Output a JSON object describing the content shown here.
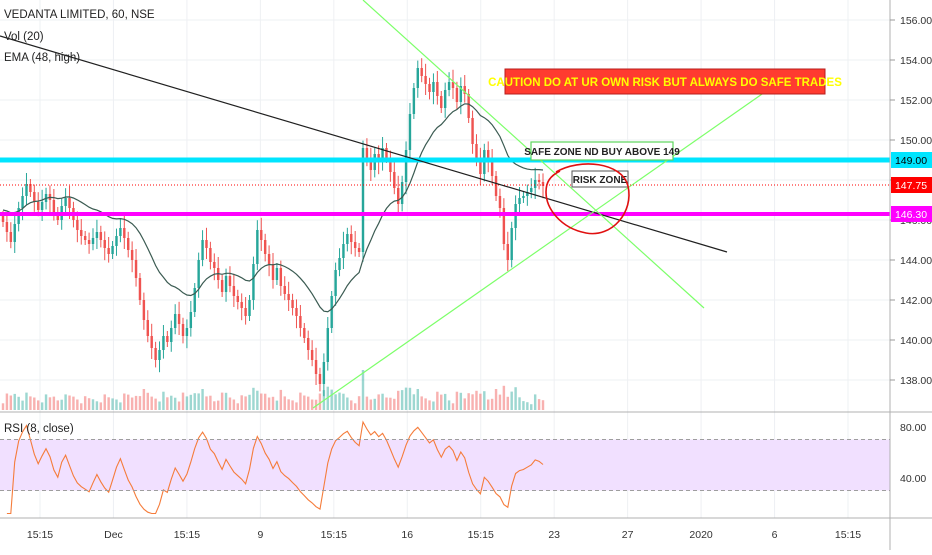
{
  "legend": {
    "symbol_line": "VEDANTA LIMITED, 60, NSE",
    "volume_line": "Vol (20)",
    "ema_line": "EMA (48, high)",
    "rsi_line": "RSI (8, close)"
  },
  "annotations": {
    "caution": "CAUTION DO AT UR OWN RISK BUT ALWAYS DO SAFE TRADES",
    "safe_zone": "SAFE ZONE ND  BUY ABOVE 149",
    "risk_zone": "RISK ZONE"
  },
  "price_badges": [
    {
      "label": "149.00",
      "value": 149.0,
      "color": "#00e5ff"
    },
    {
      "label": "147.75",
      "value": 147.75,
      "color": "#ff0000"
    },
    {
      "label": "146.30",
      "value": 146.3,
      "color": "#ff00ff"
    }
  ],
  "colors": {
    "up": "#26a69a",
    "down": "#ef5350",
    "ema": "#3b5b52",
    "rsi": "#f57c3b",
    "rsi_band": "#f1e0ff",
    "trend_black": "#202020",
    "trend_green": "#7dff6a",
    "cyan_level": "#00e5ff",
    "magenta_level": "#ff00ff",
    "caution_bg": "#ff3b30",
    "caution_text": "#ffff00"
  },
  "chart_data": {
    "type": "candlestick",
    "title": "VEDANTA LIMITED, 60, NSE",
    "indicators": [
      "Vol (20)",
      "EMA (48, high)",
      "RSI (8, close)"
    ],
    "price_axis": {
      "ylim": [
        136.5,
        157.0
      ],
      "ticks": [
        "138.00",
        "140.00",
        "142.00",
        "144.00",
        "146.00",
        "148.00",
        "150.00",
        "152.00",
        "154.00",
        "156.00"
      ]
    },
    "rsi_axis": {
      "ylim": [
        10,
        90
      ],
      "ticks": [
        "40.00",
        "80.00"
      ],
      "band": [
        30,
        70
      ]
    },
    "time_axis": {
      "labels": [
        "15:15",
        "Dec",
        "15:15",
        "9",
        "15:15",
        "16",
        "15:15",
        "23",
        "27",
        "2020",
        "6",
        "15:15"
      ]
    },
    "horizontal_levels": [
      149.0,
      147.75,
      146.3
    ],
    "close": [
      145.9,
      145.4,
      144.9,
      145.8,
      146.6,
      147.2,
      147.8,
      147.4,
      146.9,
      146.5,
      146.9,
      147.3,
      147.0,
      146.4,
      146.0,
      146.7,
      147.1,
      146.6,
      146.0,
      145.5,
      145.2,
      145.0,
      144.8,
      145.1,
      145.4,
      145.0,
      144.6,
      144.3,
      144.7,
      145.2,
      145.6,
      145.1,
      144.5,
      144.0,
      143.1,
      142.0,
      141.0,
      140.2,
      139.6,
      139.0,
      139.5,
      140.2,
      139.9,
      140.6,
      141.3,
      140.8,
      140.2,
      140.6,
      141.4,
      142.6,
      144.0,
      145.0,
      144.6,
      143.9,
      143.6,
      143.0,
      142.4,
      143.2,
      142.7,
      142.2,
      141.9,
      141.6,
      141.2,
      142.0,
      143.8,
      145.5,
      145.0,
      144.3,
      143.8,
      143.0,
      143.6,
      142.7,
      142.3,
      142.0,
      141.6,
      141.2,
      140.6,
      140.1,
      139.5,
      139.0,
      138.3,
      137.8,
      138.9,
      140.6,
      142.2,
      143.5,
      144.1,
      144.8,
      145.3,
      144.9,
      144.6,
      144.4,
      149.6,
      149.0,
      148.5,
      149.3,
      148.9,
      149.6,
      149.1,
      148.4,
      147.6,
      146.8,
      147.9,
      149.5,
      151.3,
      152.6,
      153.6,
      153.2,
      152.8,
      152.4,
      152.9,
      152.2,
      151.6,
      152.5,
      152.9,
      152.6,
      151.9,
      152.7,
      152.3,
      151.1,
      149.8,
      149.0,
      148.3,
      149.5,
      149.0,
      148.2,
      147.2,
      146.6,
      144.8,
      144.0,
      145.6,
      146.8,
      147.1,
      147.2,
      147.4,
      147.6,
      148.0,
      147.9,
      147.7
    ]
  }
}
